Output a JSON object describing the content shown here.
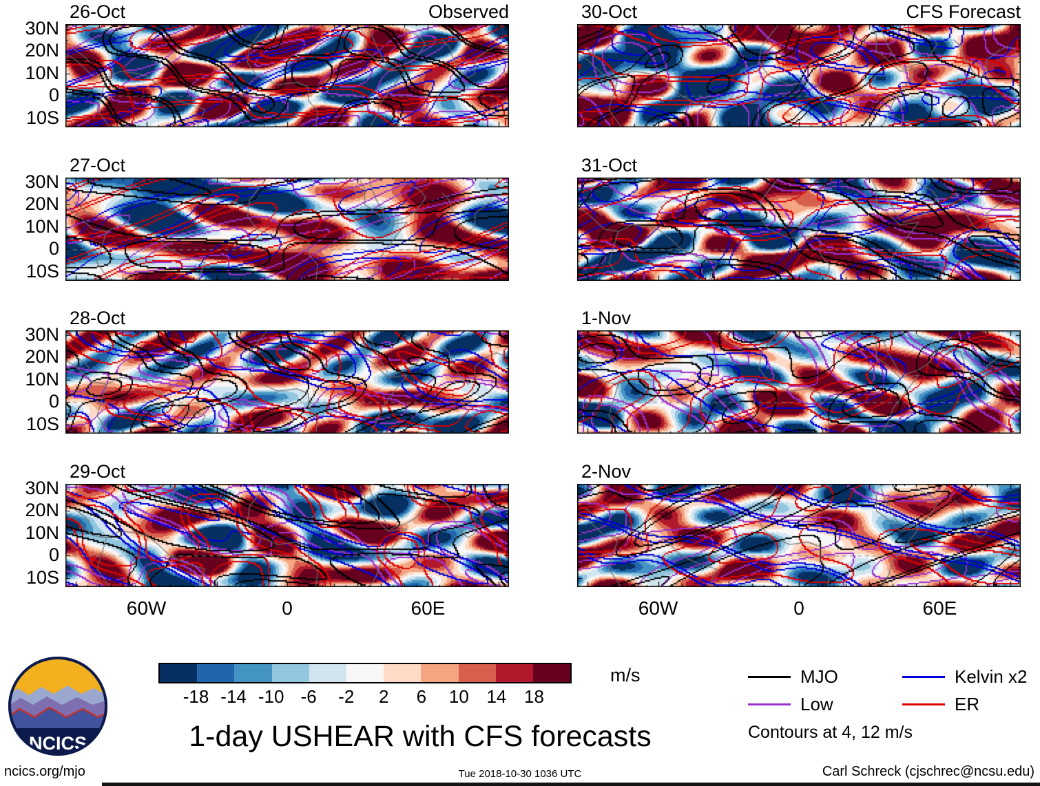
{
  "title": "1-day USHEAR with CFS forecasts",
  "panels": {
    "columns": [
      {
        "title": "Observed",
        "dates": [
          "26-Oct",
          "27-Oct",
          "28-Oct",
          "29-Oct"
        ]
      },
      {
        "title": "CFS Forecast",
        "dates": [
          "30-Oct",
          "31-Oct",
          "1-Nov",
          "2-Nov"
        ]
      }
    ]
  },
  "axes": {
    "lat_ticks": [
      {
        "label": "30N",
        "lat": 30
      },
      {
        "label": "20N",
        "lat": 20
      },
      {
        "label": "10N",
        "lat": 10
      },
      {
        "label": "0",
        "lat": 0
      },
      {
        "label": "10S",
        "lat": -10
      }
    ],
    "lon_ticks": [
      {
        "label": "60W",
        "lon": -60
      },
      {
        "label": "0",
        "lon": 0
      },
      {
        "label": "60E",
        "lon": 60
      }
    ]
  },
  "colorbar": {
    "levels": [
      -18,
      -14,
      -10,
      -6,
      -2,
      2,
      6,
      10,
      14,
      18
    ],
    "colors": [
      "#053061",
      "#2166ac",
      "#4393c3",
      "#92c5de",
      "#d1e5f0",
      "#f7f7f7",
      "#fddbc7",
      "#f4a582",
      "#d6604d",
      "#b2182b",
      "#67001f"
    ],
    "units": "m/s"
  },
  "legend": {
    "items": [
      {
        "label": "MJO",
        "color": "#000000"
      },
      {
        "label": "Kelvin x2",
        "color": "#0000dd"
      },
      {
        "label": "Low",
        "color": "#9b30d0"
      },
      {
        "label": "ER",
        "color": "#dd0000"
      }
    ],
    "note": "Contours at 4, 12 m/s"
  },
  "logo": {
    "text": "NCICS"
  },
  "footer": {
    "left": "ncics.org/mjo",
    "center": "Tue 2018-10-30 1036 UTC",
    "right": "Carl Schreck (cjschrec@ncsu.edu)"
  },
  "chart_data": {
    "type": "heatmap",
    "title": "1-day USHEAR with CFS forecasts",
    "units": "m/s",
    "columns": [
      {
        "name": "Observed",
        "panels": [
          "26-Oct",
          "27-Oct",
          "28-Oct",
          "29-Oct"
        ]
      },
      {
        "name": "CFS Forecast",
        "panels": [
          "30-Oct",
          "31-Oct",
          "1-Nov",
          "2-Nov"
        ]
      }
    ],
    "x_axis": {
      "tick_labels": [
        "60W",
        "0",
        "60E"
      ],
      "tick_lons": [
        -60,
        0,
        60
      ]
    },
    "y_axis": {
      "tick_labels": [
        "30N",
        "20N",
        "10N",
        "0",
        "10S"
      ],
      "tick_lats": [
        30,
        20,
        10,
        0,
        -10
      ]
    },
    "shading_levels": [
      -18,
      -14,
      -10,
      -6,
      -2,
      2,
      6,
      10,
      14,
      18
    ],
    "shading_palette": [
      "#053061",
      "#2166ac",
      "#4393c3",
      "#92c5de",
      "#d1e5f0",
      "#f7f7f7",
      "#fddbc7",
      "#f4a582",
      "#d6604d",
      "#b2182b",
      "#67001f"
    ],
    "contour_series": [
      {
        "name": "MJO",
        "color": "#000000"
      },
      {
        "name": "Kelvin x2",
        "color": "#0000dd"
      },
      {
        "name": "Low",
        "color": "#9b30d0"
      },
      {
        "name": "ER",
        "color": "#dd0000"
      }
    ],
    "contour_levels_ms": [
      4,
      12
    ],
    "note": "Filled-contour anomaly maps; gridded shear values are not labeled numerically in the figure"
  }
}
